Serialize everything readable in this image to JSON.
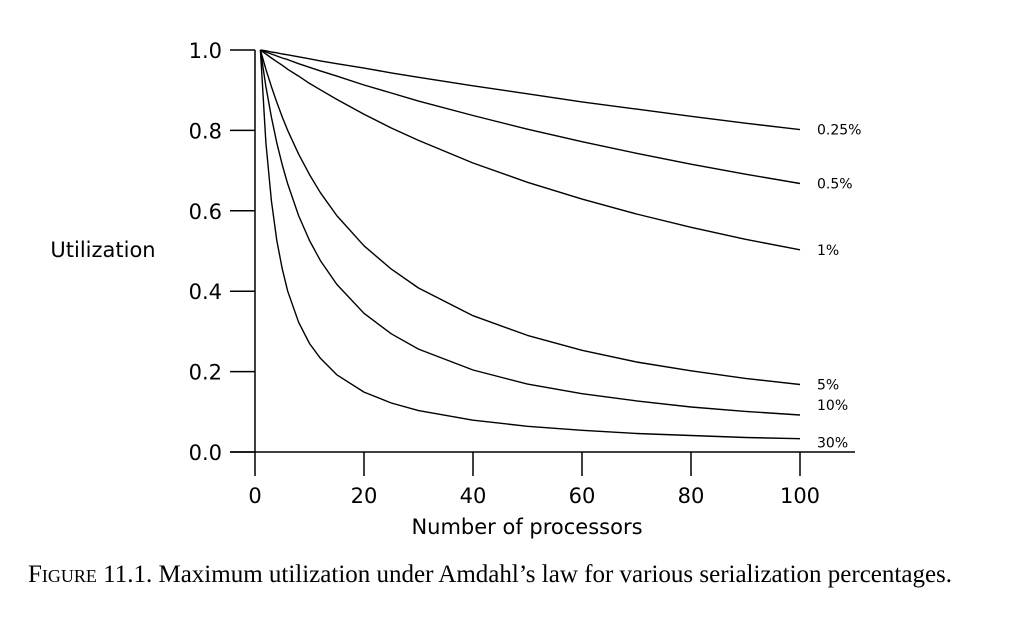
{
  "chart_data": {
    "type": "line",
    "xlabel": "Number of processors",
    "ylabel": "Utilization",
    "xlim": [
      0,
      110
    ],
    "ylim": [
      0,
      1.0
    ],
    "xticks": [
      "0",
      "20",
      "40",
      "60",
      "80",
      "100"
    ],
    "yticks": [
      "0.0",
      "0.2",
      "0.4",
      "0.6",
      "0.8",
      "1.0"
    ],
    "x": [
      1,
      2,
      3,
      4,
      5,
      6,
      8,
      10,
      12,
      15,
      20,
      25,
      30,
      40,
      50,
      60,
      70,
      80,
      90,
      100
    ],
    "series": [
      {
        "name": "0.25%",
        "values": [
          1.0,
          0.998,
          0.995,
          0.993,
          0.99,
          0.988,
          0.983,
          0.978,
          0.973,
          0.966,
          0.955,
          0.943,
          0.932,
          0.911,
          0.891,
          0.871,
          0.853,
          0.835,
          0.818,
          0.802
        ]
      },
      {
        "name": "0.5%",
        "values": [
          1.0,
          0.995,
          0.99,
          0.985,
          0.98,
          0.976,
          0.966,
          0.957,
          0.948,
          0.935,
          0.913,
          0.893,
          0.873,
          0.837,
          0.803,
          0.772,
          0.743,
          0.716,
          0.691,
          0.668
        ]
      },
      {
        "name": "1%",
        "values": [
          1.0,
          0.99,
          0.98,
          0.971,
          0.962,
          0.952,
          0.935,
          0.917,
          0.901,
          0.877,
          0.84,
          0.806,
          0.775,
          0.719,
          0.671,
          0.629,
          0.592,
          0.559,
          0.529,
          0.503
        ]
      },
      {
        "name": "5%",
        "values": [
          1.0,
          0.952,
          0.909,
          0.87,
          0.833,
          0.8,
          0.741,
          0.69,
          0.645,
          0.588,
          0.513,
          0.455,
          0.408,
          0.339,
          0.29,
          0.253,
          0.224,
          0.202,
          0.183,
          0.168
        ]
      },
      {
        "name": "10%",
        "values": [
          1.0,
          0.909,
          0.833,
          0.769,
          0.714,
          0.667,
          0.588,
          0.526,
          0.476,
          0.417,
          0.345,
          0.294,
          0.256,
          0.204,
          0.169,
          0.145,
          0.127,
          0.112,
          0.101,
          0.092
        ]
      },
      {
        "name": "30%",
        "values": [
          1.0,
          0.769,
          0.625,
          0.526,
          0.455,
          0.4,
          0.323,
          0.27,
          0.233,
          0.192,
          0.149,
          0.122,
          0.103,
          0.079,
          0.064,
          0.054,
          0.046,
          0.041,
          0.036,
          0.033
        ]
      }
    ]
  },
  "caption": {
    "label": "Figure 11.1.",
    "text": "Maximum utilization under Amdahl’s law for various serialization percentages."
  },
  "colors": {
    "line": "#000000",
    "background": "#ffffff"
  }
}
